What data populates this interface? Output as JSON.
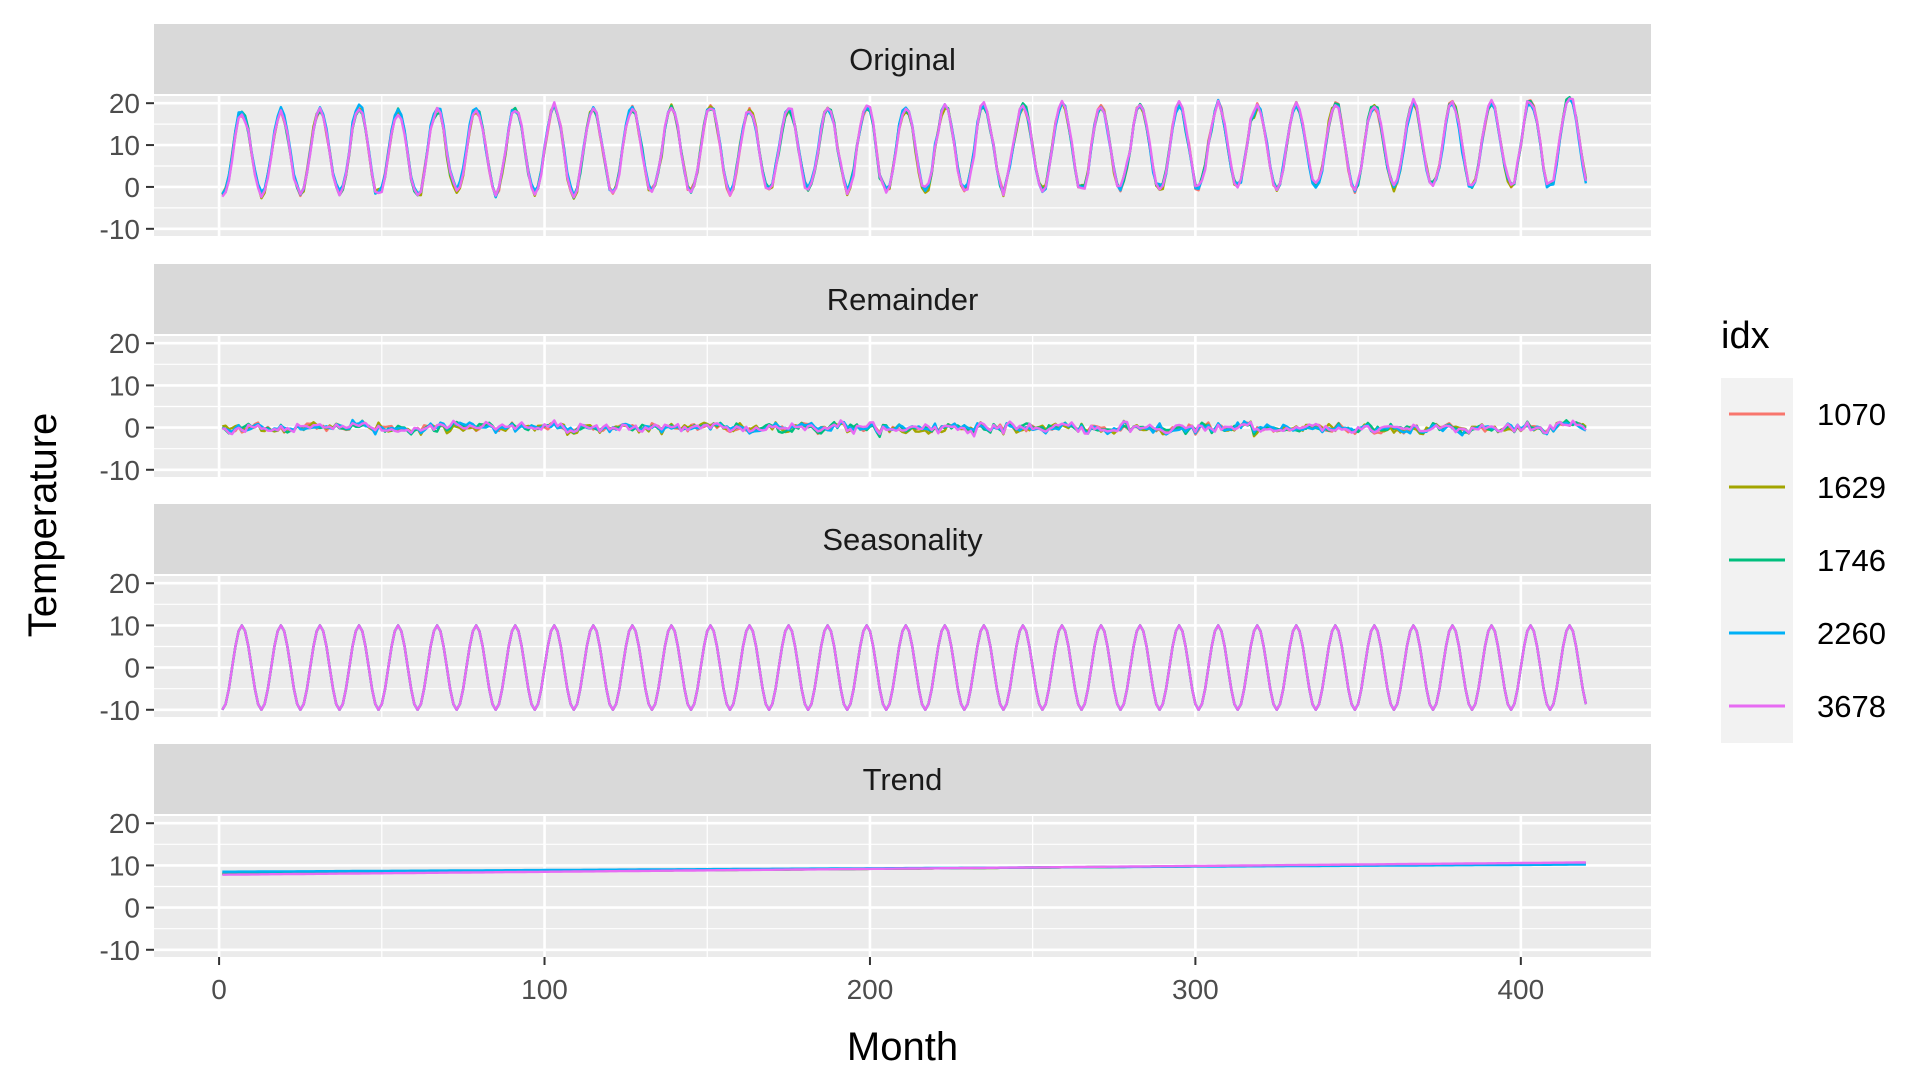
{
  "chart_data": {
    "type": "line",
    "xlabel": "Month",
    "ylabel": "Temperature",
    "xlim": [
      -20,
      440
    ],
    "ylim": [
      -11,
      21
    ],
    "x_ticks": [
      0,
      100,
      200,
      300,
      400
    ],
    "y_ticks": [
      -10,
      0,
      10,
      20
    ],
    "x_tick_labels": [
      "0",
      "100",
      "200",
      "300",
      "400"
    ],
    "y_tick_labels": [
      "-10",
      "0",
      "10",
      "20"
    ],
    "grid": true,
    "legend": {
      "title": "idx",
      "position": "right",
      "entries": [
        {
          "name": "1070",
          "color": "#F8766D"
        },
        {
          "name": "1629",
          "color": "#A3A500"
        },
        {
          "name": "1746",
          "color": "#00BF7D"
        },
        {
          "name": "2260",
          "color": "#00B0F6"
        },
        {
          "name": "3678",
          "color": "#E76BF3"
        }
      ]
    },
    "month_range": [
      1,
      420
    ],
    "panels": [
      {
        "name": "Original",
        "description_of_shape": "seasonal cycle, period 12 months",
        "period_months": 12,
        "seasonal_amplitude": 10,
        "trend_start": 8,
        "trend_end": 10.5,
        "value_range": [
          -5,
          22
        ],
        "series": [
          {
            "name": "1070",
            "color": "#F8766D",
            "amplitude": 10,
            "mean_start": 8,
            "mean_end": 10.5
          },
          {
            "name": "1629",
            "color": "#A3A500",
            "amplitude": 10,
            "mean_start": 8,
            "mean_end": 10.5
          },
          {
            "name": "1746",
            "color": "#00BF7D",
            "amplitude": 10,
            "mean_start": 8,
            "mean_end": 10.5
          },
          {
            "name": "2260",
            "color": "#00B0F6",
            "amplitude": 10,
            "mean_start": 8.5,
            "mean_end": 10.2
          },
          {
            "name": "3678",
            "color": "#E76BF3",
            "amplitude": 10,
            "mean_start": 7.8,
            "mean_end": 10.7
          }
        ]
      },
      {
        "name": "Remainder",
        "value_range": [
          -4,
          4
        ],
        "series": [
          {
            "name": "1070",
            "color": "#F8766D",
            "noise_sd": 1.5
          },
          {
            "name": "1629",
            "color": "#A3A500",
            "noise_sd": 1.5
          },
          {
            "name": "1746",
            "color": "#00BF7D",
            "noise_sd": 1.5
          },
          {
            "name": "2260",
            "color": "#00B0F6",
            "noise_sd": 1.5
          },
          {
            "name": "3678",
            "color": "#E76BF3",
            "noise_sd": 1.5
          }
        ]
      },
      {
        "name": "Seasonality",
        "value_range": [
          -10,
          10
        ],
        "series": [
          {
            "name": "1070",
            "color": "#F8766D",
            "amplitude": 10
          },
          {
            "name": "1629",
            "color": "#A3A500",
            "amplitude": 10
          },
          {
            "name": "1746",
            "color": "#00BF7D",
            "amplitude": 10
          },
          {
            "name": "2260",
            "color": "#00B0F6",
            "amplitude": 10
          },
          {
            "name": "3678",
            "color": "#E76BF3",
            "amplitude": 10
          }
        ]
      },
      {
        "name": "Trend",
        "value_range": [
          7.8,
          10.7
        ],
        "series": [
          {
            "name": "1070",
            "color": "#F8766D",
            "start": 8,
            "end": 10.5
          },
          {
            "name": "1629",
            "color": "#A3A500",
            "start": 8,
            "end": 10.5
          },
          {
            "name": "1746",
            "color": "#00BF7D",
            "start": 8,
            "end": 10.5
          },
          {
            "name": "2260",
            "color": "#00B0F6",
            "start": 8.5,
            "end": 10.2
          },
          {
            "name": "3678",
            "color": "#E76BF3",
            "start": 7.8,
            "end": 10.7
          }
        ]
      }
    ]
  }
}
